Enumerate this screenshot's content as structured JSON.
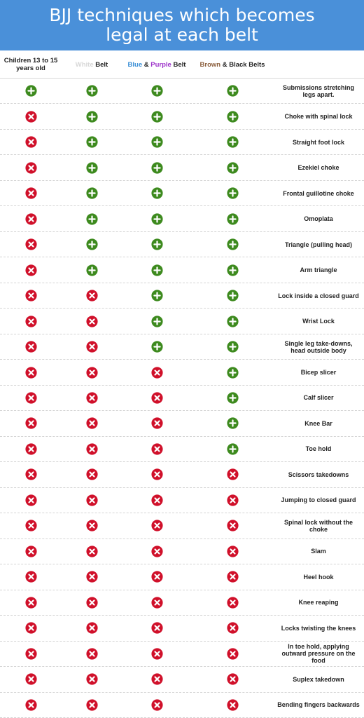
{
  "title": "BJJ techniques which becomes legal at each belt",
  "headers": {
    "children": "Children 13 to 15 years old",
    "white_word": "White",
    "white_belt": " Belt",
    "blue_word": "Blue",
    "amp1": " & ",
    "purple_word": "Purple",
    "blue_purple_belt": " Belt",
    "brown_word": "Brown",
    "brown_black_rest": " & Black Belts"
  },
  "colors": {
    "banner": "#4a90d9",
    "allowed": "#3d8a1e",
    "forbidden": "#d0102a",
    "white_text": "#d8d8d8",
    "blue_text": "#3a8fd6",
    "purple_text": "#9b2fc9",
    "brown_text": "#8b5e3c"
  },
  "icons": {
    "allowed": "plus-circle-icon",
    "forbidden": "x-circle-icon"
  },
  "rows": [
    {
      "technique": "Submissions stretching legs apart.",
      "legal": [
        true,
        true,
        true,
        true
      ]
    },
    {
      "technique": "Choke with spinal lock",
      "legal": [
        false,
        true,
        true,
        true
      ]
    },
    {
      "technique": "Straight foot lock",
      "legal": [
        false,
        true,
        true,
        true
      ]
    },
    {
      "technique": "Ezekiel choke",
      "legal": [
        false,
        true,
        true,
        true
      ]
    },
    {
      "technique": "Frontal guillotine choke",
      "legal": [
        false,
        true,
        true,
        true
      ]
    },
    {
      "technique": "Omoplata",
      "legal": [
        false,
        true,
        true,
        true
      ]
    },
    {
      "technique": "Triangle (pulling head)",
      "legal": [
        false,
        true,
        true,
        true
      ]
    },
    {
      "technique": "Arm triangle",
      "legal": [
        false,
        true,
        true,
        true
      ]
    },
    {
      "technique": "Lock inside a closed guard",
      "legal": [
        false,
        false,
        true,
        true
      ]
    },
    {
      "technique": "Wrist Lock",
      "legal": [
        false,
        false,
        true,
        true
      ]
    },
    {
      "technique": "Single leg take-downs, head outside body",
      "legal": [
        false,
        false,
        true,
        true
      ]
    },
    {
      "technique": "Bicep slicer",
      "legal": [
        false,
        false,
        false,
        true
      ]
    },
    {
      "technique": "Calf slicer",
      "legal": [
        false,
        false,
        false,
        true
      ]
    },
    {
      "technique": "Knee Bar",
      "legal": [
        false,
        false,
        false,
        true
      ]
    },
    {
      "technique": "Toe hold",
      "legal": [
        false,
        false,
        false,
        true
      ]
    },
    {
      "technique": "Scissors takedowns",
      "legal": [
        false,
        false,
        false,
        false
      ]
    },
    {
      "technique": "Jumping to closed guard",
      "legal": [
        false,
        false,
        false,
        false
      ]
    },
    {
      "technique": "Spinal lock without the choke",
      "legal": [
        false,
        false,
        false,
        false
      ]
    },
    {
      "technique": "Slam",
      "legal": [
        false,
        false,
        false,
        false
      ]
    },
    {
      "technique": "Heel hook",
      "legal": [
        false,
        false,
        false,
        false
      ]
    },
    {
      "technique": "Knee reaping",
      "legal": [
        false,
        false,
        false,
        false
      ]
    },
    {
      "technique": "Locks twisting the knees",
      "legal": [
        false,
        false,
        false,
        false
      ]
    },
    {
      "technique": "In toe hold, applying outward pressure on the food",
      "legal": [
        false,
        false,
        false,
        false
      ]
    },
    {
      "technique": "Suplex takedown",
      "legal": [
        false,
        false,
        false,
        false
      ]
    },
    {
      "technique": "Bending fingers backwards",
      "legal": [
        false,
        false,
        false,
        false
      ]
    }
  ]
}
